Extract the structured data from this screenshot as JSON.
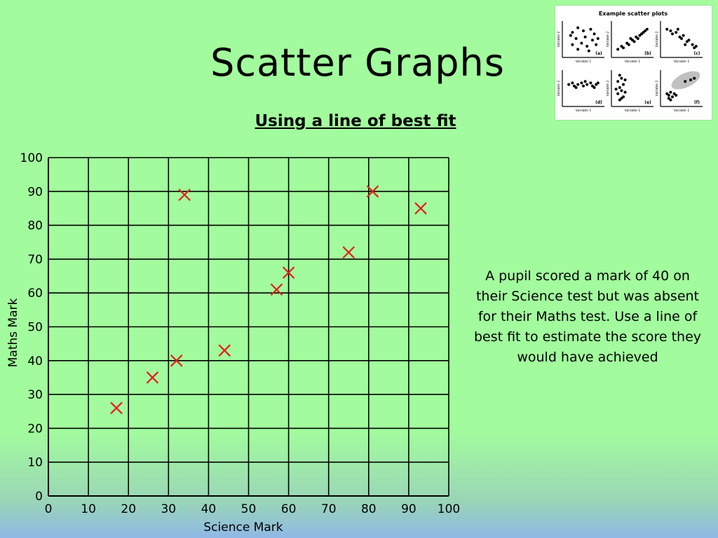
{
  "slide": {
    "title": "Scatter Graphs",
    "subtitle": "Using a line of best fit",
    "question": "A pupil scored a mark of 40 on their Science test but was absent for their Maths test. Use a line of best fit to estimate the score they would have achieved"
  },
  "thumbnail": {
    "title": "Example scatter plots",
    "panel_labels": [
      "(a)",
      "(b)",
      "(c)",
      "(d)",
      "(e)",
      "(f)"
    ],
    "xlabel": "Variable 1",
    "ylabel": "Variable 2"
  },
  "chart_data": {
    "type": "scatter",
    "xlabel": "Science Mark",
    "ylabel": "Maths Mark",
    "xlim": [
      0,
      100
    ],
    "ylim": [
      0,
      100
    ],
    "x_ticks": [
      0,
      10,
      20,
      30,
      40,
      50,
      60,
      70,
      80,
      90,
      100
    ],
    "y_ticks": [
      0,
      10,
      20,
      30,
      40,
      50,
      60,
      70,
      80,
      90,
      100
    ],
    "grid": true,
    "marker": "x",
    "marker_color": "#e0201b",
    "points": [
      {
        "x": 17,
        "y": 26
      },
      {
        "x": 26,
        "y": 35
      },
      {
        "x": 32,
        "y": 40
      },
      {
        "x": 34,
        "y": 89
      },
      {
        "x": 44,
        "y": 43
      },
      {
        "x": 57,
        "y": 61
      },
      {
        "x": 60,
        "y": 66
      },
      {
        "x": 75,
        "y": 72
      },
      {
        "x": 81,
        "y": 90
      },
      {
        "x": 93,
        "y": 85
      }
    ]
  }
}
